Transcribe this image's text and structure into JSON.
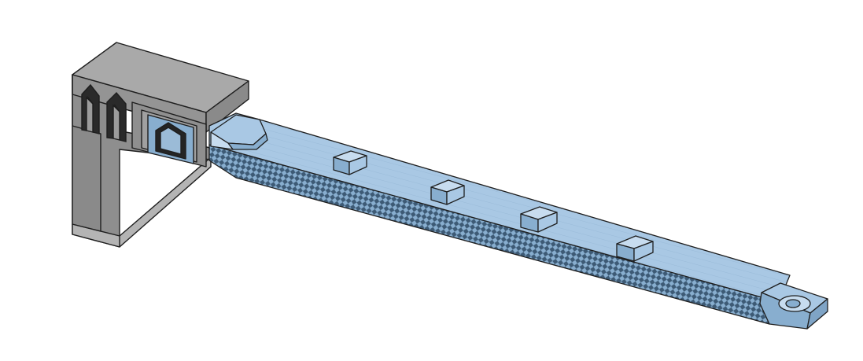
{
  "scene": {
    "description_free": true,
    "background_color": "#ffffff",
    "colors": {
      "body_gray_top": "#a9a9a9",
      "body_gray_front": "#8a8a8a",
      "body_gray_side": "#9a9a9a",
      "body_gray_dark": "#7a7a7a",
      "edge": "#1e1e1e",
      "blue_top": "#a9c8e4",
      "blue_side": "#88aecf",
      "blue_dark": "#6f94b6",
      "blue_light": "#c7dcef",
      "knurl": "#5f7f9c"
    },
    "parts": {
      "housing": "gray-housing-block",
      "rail": "blue-sliding-rail",
      "rib_count": 4,
      "end_tab": "mounting-tab-with-hole"
    }
  }
}
